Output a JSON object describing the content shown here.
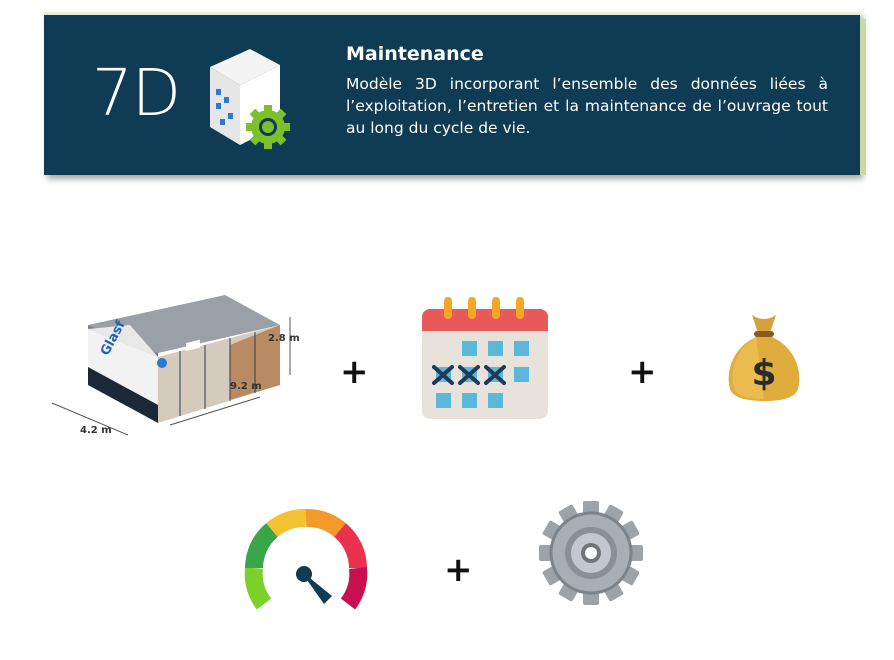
{
  "banner": {
    "badge": "7D",
    "title": "Maintenance",
    "description": "Modèle 3D incorporant l’ensemble des données liées à l’exploitation, l’entretien et la maintenance de l’ouvrage tout au long du cycle de vie.",
    "background_color": "#0f3b55"
  },
  "building": {
    "brand": "Glasf",
    "width_label": "4.2 m",
    "length_label": "9.2 m",
    "height_label": "2.8 m"
  },
  "operators": {
    "plus_1": "+",
    "plus_2": "+",
    "plus_3": "+"
  },
  "icons": [
    "building-3d-model",
    "calendar-icon",
    "money-bag-icon",
    "gauge-icon",
    "gear-icon"
  ]
}
